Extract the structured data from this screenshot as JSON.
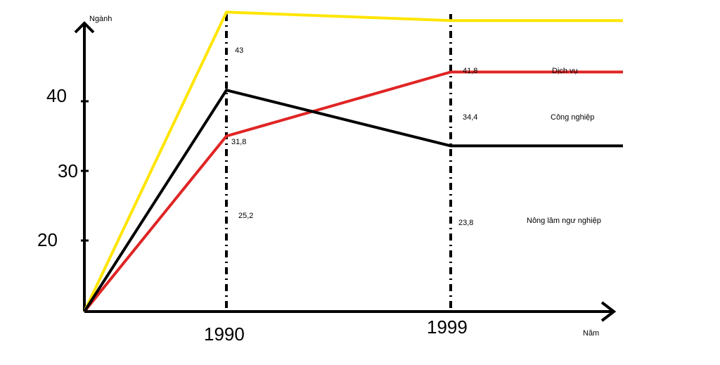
{
  "chart_data": {
    "type": "line",
    "ylabel": "Ngành",
    "xlabel": "Năm",
    "x_ticks": [
      "1990",
      "1999"
    ],
    "y_ticks": [
      {
        "value": 20,
        "label": "20"
      },
      {
        "value": 30,
        "label": "30"
      },
      {
        "value": 40,
        "label": "40"
      }
    ],
    "grid": false,
    "series": [
      {
        "name": "Dịch vụ",
        "color": "#FFE500",
        "values": [
          43,
          41.8
        ],
        "value_labels": [
          "43",
          "41,8"
        ]
      },
      {
        "name": "Công nghiệp",
        "color": "#E02424",
        "values": [
          25.2,
          34.4
        ],
        "value_labels": [
          "25,2",
          "34,4"
        ]
      },
      {
        "name": "Nông lâm ngư nghiệp",
        "color": "#000000",
        "values": [
          31.8,
          23.8
        ],
        "value_labels": [
          "31,8",
          "23,8"
        ]
      }
    ]
  }
}
